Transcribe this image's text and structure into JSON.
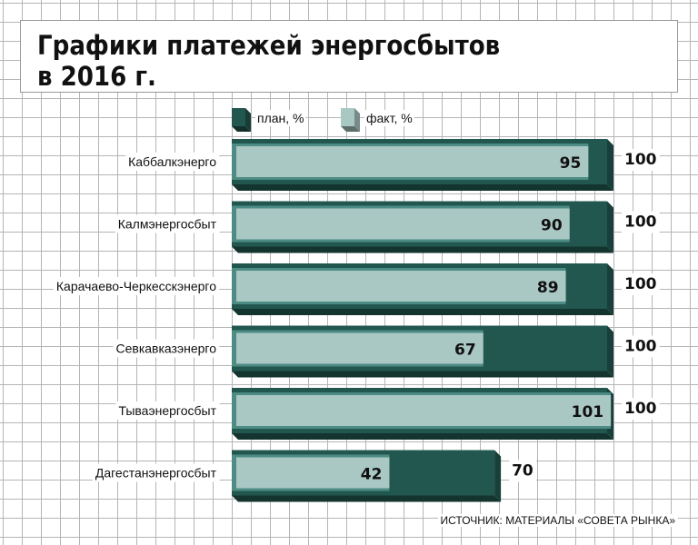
{
  "title": {
    "line1": "Графики платежей энергосбытов",
    "line2": "в 2016 г."
  },
  "source": "ИСТОЧНИК: МАТЕРИАЛЫ «СОВЕТА РЫНКА»",
  "colors": {
    "plan": "#22574f",
    "fact": "#a9c7c3",
    "fact_edge": "#4c8c84",
    "grid": "#b5b5b5"
  },
  "chart_data": {
    "type": "bar",
    "orientation": "horizontal",
    "categories": [
      "Каббалкэнерго",
      "Калмэнергосбыт",
      "Карачаево-Черкесскэнерго",
      "Севкавказэнерго",
      "Тываэнергосбыт",
      "Дагестанэнергосбыт"
    ],
    "series": [
      {
        "name": "план, %",
        "values": [
          100,
          100,
          100,
          100,
          100,
          70
        ]
      },
      {
        "name": "факт, %",
        "values": [
          95,
          90,
          89,
          67,
          101,
          42
        ]
      }
    ],
    "xlim": [
      0,
      101
    ],
    "grid": true,
    "legend": "top-center"
  }
}
